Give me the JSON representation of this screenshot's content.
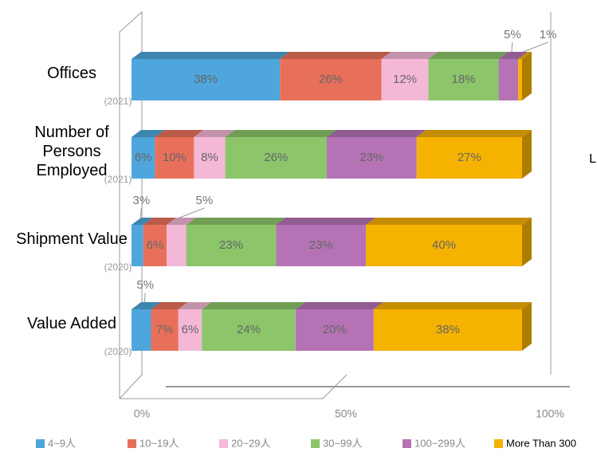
{
  "chart_data": {
    "type": "bar3d_stacked_horizontal",
    "categories": [
      "Offices",
      "Number of Persons Employed",
      "Shipment Value",
      "Value Added"
    ],
    "category_years": [
      "(2021)",
      "(2021)",
      "(2020)",
      "(2020)"
    ],
    "series": [
      {
        "name": "4~9人",
        "color": "#4ea6dc",
        "values": [
          38,
          6,
          3,
          5
        ],
        "value_labels": [
          "38%",
          "6%",
          "3%",
          "5%"
        ]
      },
      {
        "name": "10~19人",
        "color": "#e8705a",
        "values": [
          26,
          10,
          6,
          7
        ],
        "value_labels": [
          "26%",
          "10%",
          "6%",
          "7%"
        ]
      },
      {
        "name": "20~29人",
        "color": "#f4b8d6",
        "values": [
          12,
          8,
          5,
          6
        ],
        "value_labels": [
          "12%",
          "8%",
          "5%",
          "6%"
        ]
      },
      {
        "name": "30~99人",
        "color": "#8cc56a",
        "values": [
          18,
          26,
          23,
          24
        ],
        "value_labels": [
          "18%",
          "26%",
          "23%",
          "24%"
        ]
      },
      {
        "name": "100~299人",
        "color": "#b573b5",
        "values": [
          5,
          23,
          23,
          20
        ],
        "value_labels": [
          "5%",
          "23%",
          "23%",
          "20%"
        ]
      },
      {
        "name": "More Than 300",
        "color": "#f5b200",
        "values": [
          1,
          27,
          40,
          38
        ],
        "value_labels": [
          "1%",
          "27%",
          "40%",
          "38%"
        ]
      }
    ],
    "xlim": [
      0,
      100
    ],
    "xticks": [
      {
        "value": 0,
        "label": "0%"
      },
      {
        "value": 50,
        "label": "50%"
      },
      {
        "value": 100,
        "label": "100%"
      }
    ],
    "annotation": "L"
  }
}
